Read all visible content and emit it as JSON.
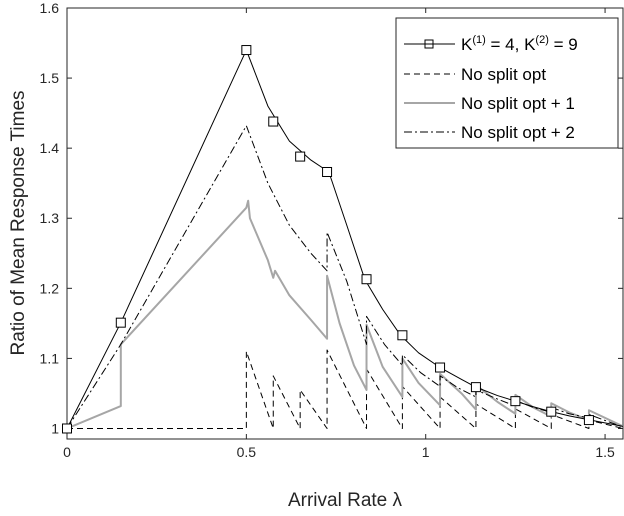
{
  "chart_data": {
    "type": "line",
    "title": "",
    "xlabel": "Arrival Rate λ",
    "ylabel": "Ratio of Mean Response Times",
    "xlim": [
      0,
      1.55
    ],
    "ylim": [
      0.985,
      1.6
    ],
    "x_ticks": [
      0,
      0.5,
      1,
      1.5
    ],
    "x_tick_labels": [
      "0",
      "0.5",
      "1",
      "1.5"
    ],
    "y_ticks": [
      1,
      1.1,
      1.2,
      1.3,
      1.4,
      1.5,
      1.6
    ],
    "y_tick_labels": [
      "1",
      "1.1",
      "1.2",
      "1.3",
      "1.4",
      "1.5",
      "1.6"
    ],
    "grid": false,
    "legend_position": "top-right",
    "series": [
      {
        "name": "K(1) = 4, K(2) = 9",
        "legend": {
          "base": "K",
          "sup1": "(1)",
          "mid": " = 4, K",
          "sup2": "(2)",
          "tail": " = 9"
        },
        "color": "#000000",
        "style": "solid-square-markers",
        "x": [
          0,
          0.15,
          0.5,
          0.56,
          0.62,
          0.68,
          0.73,
          0.78,
          0.83,
          0.88,
          0.93,
          0.98,
          1.04,
          1.1,
          1.14,
          1.2,
          1.25,
          1.3,
          1.35,
          1.4,
          1.46,
          1.55
        ],
        "y": [
          1.0,
          1.151,
          1.54,
          1.46,
          1.41,
          1.383,
          1.366,
          1.29,
          1.213,
          1.17,
          1.133,
          1.108,
          1.087,
          1.07,
          1.059,
          1.047,
          1.039,
          1.031,
          1.024,
          1.018,
          1.012,
          1.003
        ],
        "markers_x": [
          0,
          0.15,
          0.5,
          0.575,
          0.65,
          0.725,
          0.835,
          0.935,
          1.04,
          1.14,
          1.25,
          1.35,
          1.455
        ],
        "markers_y": [
          1.0,
          1.151,
          1.54,
          1.438,
          1.388,
          1.366,
          1.213,
          1.133,
          1.087,
          1.059,
          1.039,
          1.024,
          1.012
        ]
      },
      {
        "name": "No split opt",
        "color": "#000000",
        "style": "dashed",
        "x": [
          0,
          0.5,
          0.5,
          0.575,
          0.575,
          0.65,
          0.65,
          0.725,
          0.725,
          0.835,
          0.835,
          0.935,
          0.935,
          1.04,
          1.04,
          1.14,
          1.14,
          1.25,
          1.25,
          1.35,
          1.35,
          1.455,
          1.455,
          1.55
        ],
        "y": [
          1.0,
          1.0,
          1.11,
          1.0,
          1.075,
          1.0,
          1.055,
          1.0,
          1.112,
          1.0,
          1.085,
          1.0,
          1.06,
          1.0,
          1.045,
          1.0,
          1.035,
          1.0,
          1.028,
          1.0,
          1.02,
          1.0,
          1.012,
          1.0
        ]
      },
      {
        "name": "No split opt + 1",
        "color": "#a6a6a6",
        "style": "solid",
        "x": [
          0,
          0.15,
          0.15,
          0.5,
          0.505,
          0.51,
          0.56,
          0.575,
          0.58,
          0.62,
          0.68,
          0.725,
          0.725,
          0.76,
          0.8,
          0.835,
          0.835,
          0.88,
          0.935,
          0.935,
          0.98,
          1.04,
          1.04,
          1.1,
          1.14,
          1.14,
          1.2,
          1.25,
          1.25,
          1.3,
          1.35,
          1.35,
          1.4,
          1.455,
          1.455,
          1.55
        ],
        "y": [
          1.0,
          1.032,
          1.12,
          1.315,
          1.325,
          1.3,
          1.24,
          1.215,
          1.225,
          1.19,
          1.155,
          1.128,
          1.218,
          1.15,
          1.09,
          1.055,
          1.148,
          1.088,
          1.045,
          1.1,
          1.065,
          1.033,
          1.078,
          1.05,
          1.027,
          1.062,
          1.038,
          1.021,
          1.048,
          1.03,
          1.017,
          1.036,
          1.023,
          1.012,
          1.026,
          1.003
        ]
      },
      {
        "name": "No split opt + 2",
        "color": "#000000",
        "style": "dash-dot",
        "x": [
          0,
          0.15,
          0.5,
          0.56,
          0.62,
          0.68,
          0.725,
          0.725,
          0.78,
          0.835,
          0.835,
          0.885,
          0.935,
          0.935,
          0.985,
          1.04,
          1.04,
          1.09,
          1.14,
          1.14,
          1.2,
          1.25,
          1.25,
          1.3,
          1.35,
          1.35,
          1.4,
          1.455,
          1.455,
          1.55
        ],
        "y": [
          1.0,
          1.12,
          1.432,
          1.35,
          1.29,
          1.25,
          1.225,
          1.28,
          1.21,
          1.12,
          1.16,
          1.12,
          1.09,
          1.105,
          1.08,
          1.06,
          1.075,
          1.058,
          1.045,
          1.055,
          1.042,
          1.032,
          1.04,
          1.03,
          1.023,
          1.03,
          1.021,
          1.015,
          1.02,
          1.002
        ]
      }
    ]
  }
}
